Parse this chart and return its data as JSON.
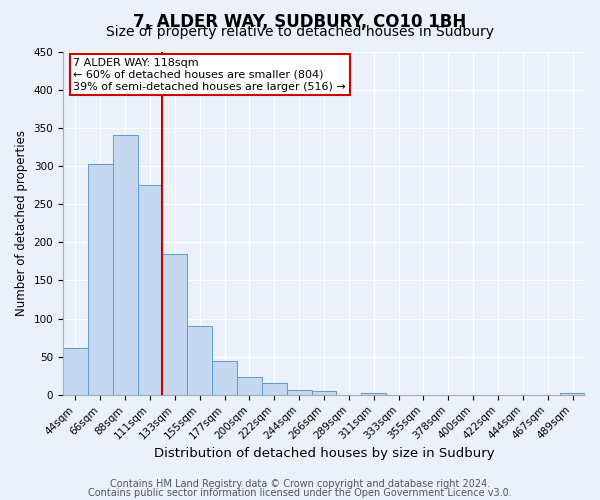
{
  "title": "7, ALDER WAY, SUDBURY, CO10 1BH",
  "subtitle": "Size of property relative to detached houses in Sudbury",
  "xlabel": "Distribution of detached houses by size in Sudbury",
  "ylabel": "Number of detached properties",
  "bar_labels": [
    "44sqm",
    "66sqm",
    "88sqm",
    "111sqm",
    "133sqm",
    "155sqm",
    "177sqm",
    "200sqm",
    "222sqm",
    "244sqm",
    "266sqm",
    "289sqm",
    "311sqm",
    "333sqm",
    "355sqm",
    "378sqm",
    "400sqm",
    "422sqm",
    "444sqm",
    "467sqm",
    "489sqm"
  ],
  "bar_values": [
    62,
    302,
    340,
    275,
    184,
    90,
    45,
    24,
    15,
    7,
    5,
    0,
    3,
    0,
    0,
    0,
    0,
    0,
    0,
    0,
    2
  ],
  "bar_color": "#c5d8f0",
  "bar_edge_color": "#5b9bd5",
  "vline_color": "#cc0000",
  "annotation_title": "7 ALDER WAY: 118sqm",
  "annotation_line1": "← 60% of detached houses are smaller (804)",
  "annotation_line2": "39% of semi-detached houses are larger (516) →",
  "annotation_box_color": "#ffffff",
  "annotation_border_color": "#cc0000",
  "ylim": [
    0,
    450
  ],
  "yticks": [
    0,
    50,
    100,
    150,
    200,
    250,
    300,
    350,
    400,
    450
  ],
  "footer1": "Contains HM Land Registry data © Crown copyright and database right 2024.",
  "footer2": "Contains public sector information licensed under the Open Government Licence v3.0.",
  "background_color": "#eaf1fb",
  "plot_background": "#eaf1fb",
  "grid_color": "#ffffff",
  "title_fontsize": 12,
  "subtitle_fontsize": 10,
  "xlabel_fontsize": 9.5,
  "ylabel_fontsize": 8.5,
  "tick_fontsize": 7.5,
  "footer_fontsize": 7
}
